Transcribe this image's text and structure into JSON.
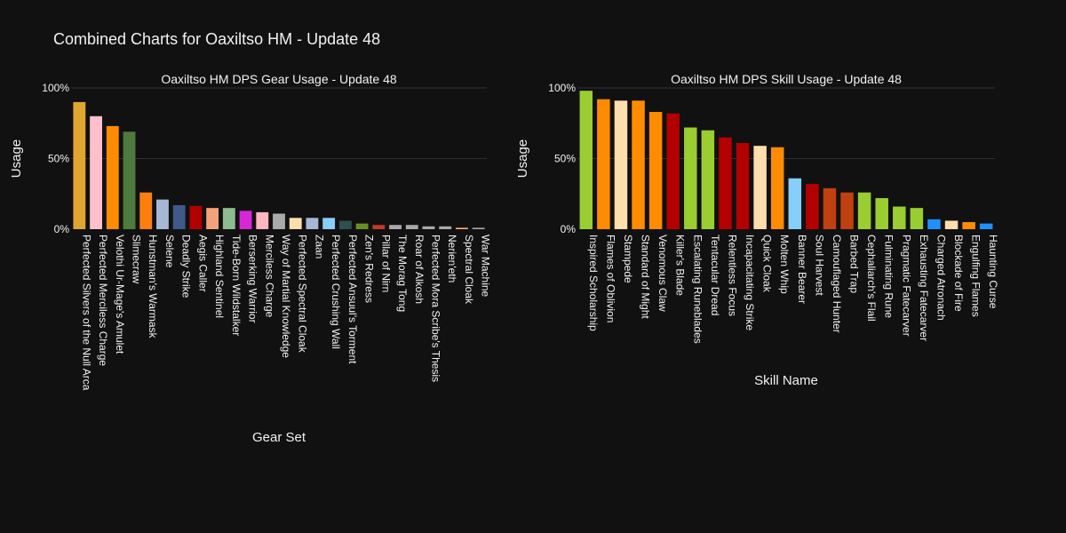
{
  "page_title": "Combined Charts for Oaxiltso HM - Update 48",
  "chart_data": [
    {
      "type": "bar",
      "title": "Oaxiltso HM DPS Gear Usage - Update 48",
      "xlabel": "Gear Set",
      "ylabel": "Usage",
      "ylim": [
        0,
        1
      ],
      "yticks": [
        "0%",
        "50%",
        "100%"
      ],
      "grid": true,
      "categories": [
        "Perfected Silvers of the Null Arca",
        "Perfected Merciless Charge",
        "Velothi Ur-Mage's Amulet",
        "Slimecraw",
        "Hunstman's Warmask",
        "Selene",
        "Deadly Strike",
        "Aegis Caller",
        "Highland Sentinel",
        "Tide-Born Wildstalker",
        "Berserking Warrior",
        "Merciless Charge",
        "Way of Martial Knowledge",
        "Perfected Spectral Cloak",
        "Zaan",
        "Perfected Crushing Wall",
        "Perfected Ansuul's Torment",
        "Zen's Redress",
        "Pillar of Nirn",
        "The Morag Tong",
        "Roar of Alkosh",
        "Perfected Mora Scribe's Thesis",
        "Nerien'eth",
        "Spectral Cloak",
        "War Machine"
      ],
      "values": [
        0.9,
        0.8,
        0.73,
        0.69,
        0.26,
        0.21,
        0.17,
        0.165,
        0.15,
        0.15,
        0.13,
        0.12,
        0.11,
        0.08,
        0.08,
        0.08,
        0.06,
        0.04,
        0.03,
        0.03,
        0.03,
        0.02,
        0.02,
        0.01,
        0.01
      ],
      "colors": [
        "#e0a730",
        "#ffc0cb",
        "#ff8c00",
        "#4e7a3e",
        "#ff7f0e",
        "#a6b8d6",
        "#3f5a8a",
        "#b30000",
        "#f2a27a",
        "#8fbc8f",
        "#d627d6",
        "#ffb6c1",
        "#aaaaaa",
        "#ffdead",
        "#a6b8d6",
        "#87cefa",
        "#2f4f4f",
        "#6b8e23",
        "#c0392b",
        "#aaaaaa",
        "#aaaaaa",
        "#aaaaaa",
        "#aaaaaa",
        "#ffb07a",
        "#aaaaaa"
      ]
    },
    {
      "type": "bar",
      "title": "Oaxiltso HM DPS Skill Usage - Update 48",
      "xlabel": "Skill Name",
      "ylabel": "Usage",
      "ylim": [
        0,
        1
      ],
      "yticks": [
        "0%",
        "50%",
        "100%"
      ],
      "grid": true,
      "categories": [
        "Inspired Scholarship",
        "Flames of Oblivion",
        "Stampede",
        "Standard of Might",
        "Venomous Claw",
        "Killer's Blade",
        "Escalating Runeblades",
        "Tentacular Dread",
        "Relentless Focus",
        "Incapacitating Strike",
        "Quick Cloak",
        "Molten Whip",
        "Banner Bearer",
        "Soul Harvest",
        "Camouflaged Hunter",
        "Barbed Trap",
        "Cephaliarch's Flail",
        "Fulminating Rune",
        "Pragmatic Fatecarver",
        "Exhausting Fatecarver",
        "Charged Atronach",
        "Blockade of Fire",
        "Engulfing Flames",
        "Haunting Curse"
      ],
      "values": [
        0.98,
        0.92,
        0.91,
        0.91,
        0.83,
        0.82,
        0.72,
        0.7,
        0.65,
        0.61,
        0.59,
        0.58,
        0.36,
        0.32,
        0.29,
        0.26,
        0.26,
        0.22,
        0.16,
        0.15,
        0.07,
        0.06,
        0.05,
        0.04
      ],
      "colors": [
        "#9acd32",
        "#ff8c00",
        "#ffdead",
        "#ff8c00",
        "#ff8c00",
        "#b30000",
        "#9acd32",
        "#9acd32",
        "#b30000",
        "#b30000",
        "#ffdead",
        "#ff8c00",
        "#87cefa",
        "#b30000",
        "#c04010",
        "#c04010",
        "#9acd32",
        "#9acd32",
        "#9acd32",
        "#9acd32",
        "#1e90ff",
        "#ffdead",
        "#ff8c00",
        "#1e90ff"
      ]
    }
  ]
}
